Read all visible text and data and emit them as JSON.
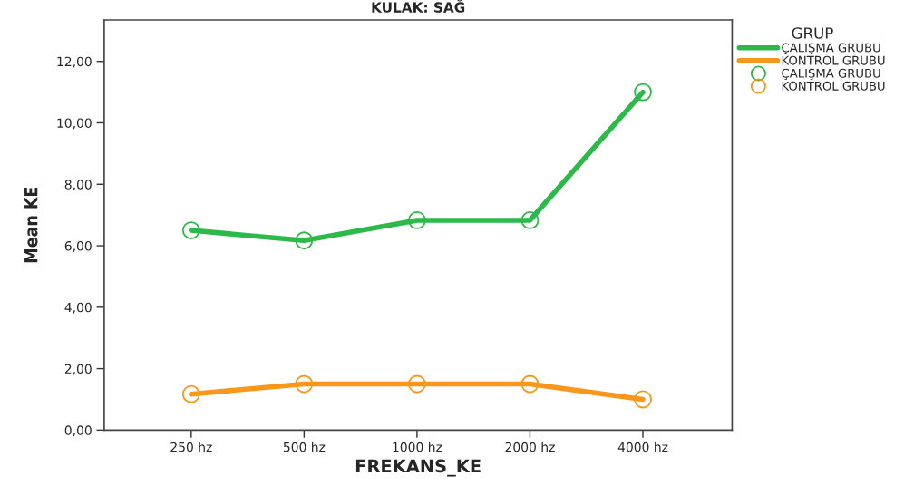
{
  "chart_data": {
    "type": "line",
    "title": "KULAK: SAĞ",
    "xlabel": "FREKANS_KE",
    "ylabel": "Mean KE",
    "legend_title": "GRUP",
    "categories": [
      "250 hz",
      "500 hz",
      "1000 hz",
      "2000 hz",
      "4000 hz"
    ],
    "series": [
      {
        "name": "ÇALIŞMA GRUBU",
        "color": "#2db84a",
        "values": [
          6.5,
          6.17,
          6.83,
          6.83,
          11.0
        ]
      },
      {
        "name": "KONTROL GRUBU",
        "color": "#f7981d",
        "values": [
          1.17,
          1.5,
          1.5,
          1.5,
          1.0
        ]
      }
    ],
    "ylim": [
      0,
      13.35
    ],
    "yticks": [
      {
        "value": 0,
        "label": "0,00"
      },
      {
        "value": 2,
        "label": "2,00"
      },
      {
        "value": 4,
        "label": "4,00"
      },
      {
        "value": 6,
        "label": "6,00"
      },
      {
        "value": 8,
        "label": "8,00"
      },
      {
        "value": 10,
        "label": "10,00"
      },
      {
        "value": 12,
        "label": "12,00"
      }
    ],
    "marker": "circle",
    "line_style": "solid",
    "grid": false,
    "legend": "top right"
  }
}
